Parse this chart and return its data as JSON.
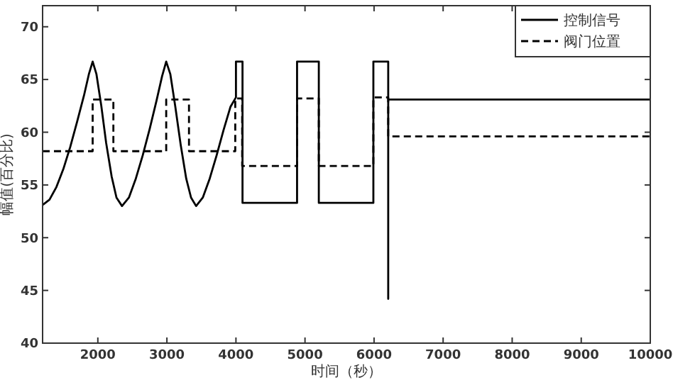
{
  "chart_data": {
    "type": "line",
    "xlabel": "时间（秒）",
    "ylabel": "幅值(百分比)",
    "xlim": [
      1200,
      10000
    ],
    "ylim": [
      40,
      72
    ],
    "xticks": [
      2000,
      3000,
      4000,
      5000,
      6000,
      7000,
      8000,
      9000,
      10000
    ],
    "yticks": [
      40,
      45,
      50,
      55,
      60,
      65,
      70
    ],
    "grid": false,
    "legend": "top right",
    "marker": "none",
    "series": [
      {
        "name": "控制信号",
        "color": "#000000",
        "line_style": "solid",
        "x": [
          1200,
          1300,
          1400,
          1500,
          1600,
          1700,
          1800,
          1870,
          1925,
          1980,
          2050,
          2120,
          2200,
          2270,
          2350,
          2450,
          2550,
          2650,
          2750,
          2850,
          2930,
          2990,
          3050,
          3120,
          3200,
          3280,
          3350,
          3423,
          3520,
          3620,
          3720,
          3820,
          3920,
          4000,
          4000,
          4095,
          4095,
          4885,
          4885,
          5200,
          5200,
          5990,
          5990,
          6205,
          6205,
          6205,
          10000
        ],
        "values": [
          53.1,
          53.6,
          54.8,
          56.5,
          58.6,
          61,
          63.5,
          65.5,
          66.7,
          65.5,
          62.5,
          59,
          55.8,
          53.8,
          53,
          53.8,
          55.6,
          57.8,
          60.3,
          63,
          65.3,
          66.7,
          65.5,
          62.5,
          58.8,
          55.6,
          53.8,
          53,
          53.8,
          55.6,
          57.8,
          60.2,
          62.4,
          63.3,
          66.7,
          66.7,
          53.3,
          53.3,
          66.7,
          66.7,
          53.3,
          53.3,
          66.7,
          66.7,
          44.2,
          63.1,
          63.1
        ]
      },
      {
        "name": "阀门位置",
        "type": "step",
        "color": "#000000",
        "line_style": "dashed",
        "x": [
          1200,
          1925,
          2225,
          2990,
          3320,
          3990,
          4090,
          4885,
          5200,
          5990,
          6205,
          10000
        ],
        "values": [
          58.2,
          63.1,
          58.2,
          63.1,
          58.2,
          63.2,
          56.8,
          63.2,
          56.8,
          63.3,
          59.6,
          59.6
        ]
      }
    ]
  }
}
